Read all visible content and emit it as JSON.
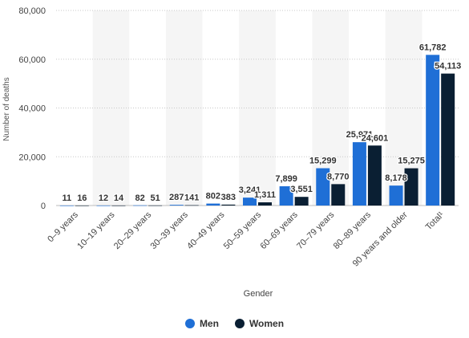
{
  "chart_data": {
    "type": "bar",
    "title": "",
    "xlabel": "Gender",
    "ylabel": "Number of deaths",
    "ylim": [
      0,
      80000
    ],
    "yticks": [
      "0",
      "20,000",
      "40,000",
      "60,000",
      "80,000"
    ],
    "grid": true,
    "legend_position": "bottom",
    "categories": [
      "0–9 years",
      "10–19 years",
      "20–29 years",
      "30–39 years",
      "40–49 years",
      "50–59 years",
      "60–69 years",
      "70–79 years",
      "80–89 years",
      "90 years and older",
      "Total¹"
    ],
    "series": [
      {
        "name": "Men",
        "color": "#1f6fd6",
        "values": [
          11,
          12,
          82,
          287,
          802,
          3241,
          7899,
          15299,
          25971,
          8178,
          61782
        ],
        "labels": [
          "11",
          "12",
          "82",
          "287",
          "802",
          "3,241",
          "7,899",
          "15,299",
          "25,971",
          "8,178",
          "61,782"
        ]
      },
      {
        "name": "Women",
        "color": "#0a1f33",
        "values": [
          16,
          14,
          51,
          141,
          383,
          1311,
          3551,
          8770,
          24601,
          15275,
          54113
        ],
        "labels": [
          "16",
          "14",
          "51",
          "141",
          "383",
          "1,311",
          "3,551",
          "8,770",
          "24,601",
          "15,275",
          "54,113"
        ]
      }
    ]
  }
}
